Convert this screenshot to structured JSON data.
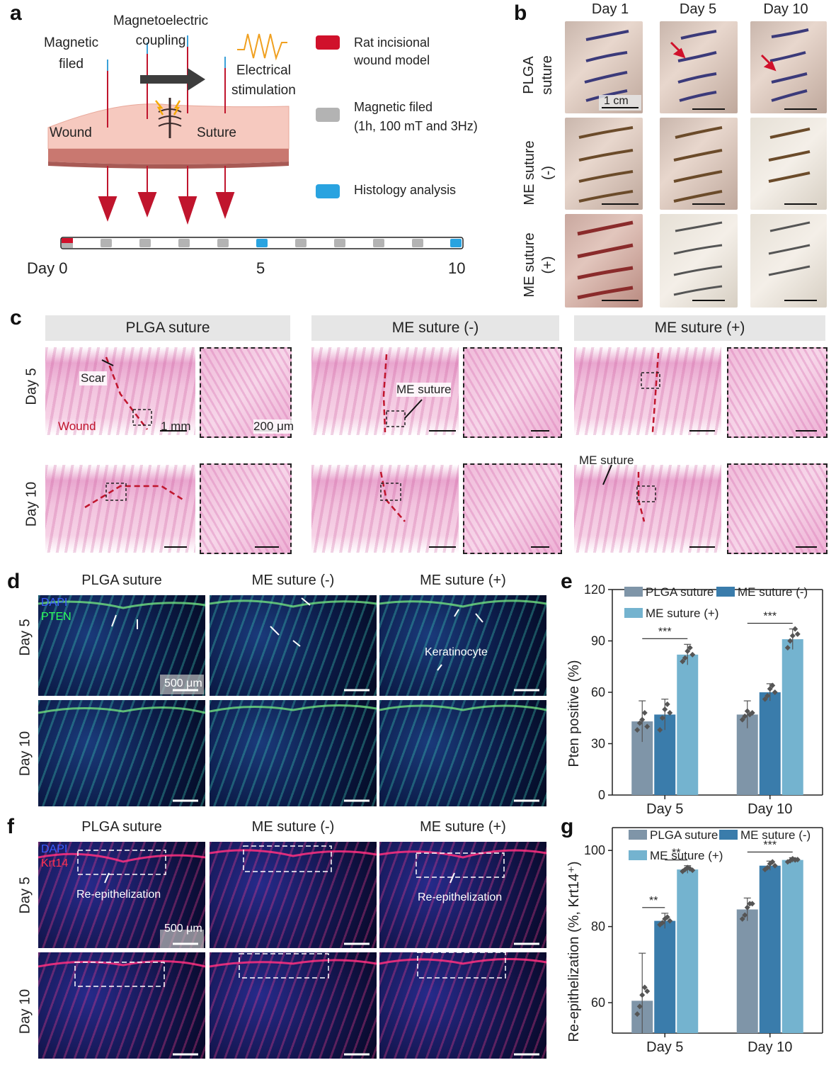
{
  "panels": {
    "a": "a",
    "b": "b",
    "c": "c",
    "d": "d",
    "e": "e",
    "f": "f",
    "g": "g"
  },
  "panel_a": {
    "magnetic_field": "Magnetic\nfiled",
    "magnetoelectric": "Magnetoelectric\ncoupling",
    "electrical_stimulation": "Electrical\nstimulation",
    "wound": "Wound",
    "suture": "Suture",
    "legend": [
      {
        "label": "Rat incisional\nwound model",
        "color": "#d0112b"
      },
      {
        "label": "Magnetic filed\n(1h, 100 mT and 3Hz)",
        "color": "#b3b3b3"
      },
      {
        "label": "Histology analysis",
        "color": "#29a3e0"
      }
    ],
    "timeline": {
      "day_label": "Day 0",
      "t5": "5",
      "t10": "10"
    }
  },
  "panel_b": {
    "columns": [
      "Day 1",
      "Day 5",
      "Day 10"
    ],
    "rows": [
      "PLGA\nsuture",
      "ME suture\n(-)",
      "ME suture\n(+)"
    ],
    "scale": "1 cm"
  },
  "panel_c": {
    "headers": [
      "PLGA suture",
      "ME suture (-)",
      "ME suture (+)"
    ],
    "rows": [
      "Day 5",
      "Day 10"
    ],
    "annotations": {
      "scar": "Scar",
      "wound": "Wound",
      "scale1": "1 mm",
      "scale2": "200 μm",
      "me_suture": "ME suture"
    }
  },
  "panel_d": {
    "headers": [
      "PLGA suture",
      "ME suture (-)",
      "ME suture (+)"
    ],
    "rows": [
      "Day 5",
      "Day 10"
    ],
    "stain1": "DAPI",
    "stain2": "PTEN",
    "scale": "500 μm",
    "keratinocyte": "Keratinocyte"
  },
  "panel_f": {
    "headers": [
      "PLGA suture",
      "ME suture (-)",
      "ME suture (+)"
    ],
    "rows": [
      "Day 5",
      "Day 10"
    ],
    "stain1": "DAPI",
    "stain2": "Krt14",
    "scale": "500 μm",
    "reepi": "Re-epithelization"
  },
  "chart_data": [
    {
      "type": "bar",
      "categories": [
        "Day 5",
        "Day 10"
      ],
      "series": [
        {
          "name": "PLGA suture",
          "values": [
            43,
            47
          ],
          "err": [
            12,
            8
          ],
          "color": "#7f95a8",
          "points": [
            [
              38,
              42,
              44,
              48,
              40
            ],
            [
              44,
              46,
              49,
              47,
              48
            ]
          ]
        },
        {
          "name": "ME suture (-)",
          "values": [
            47,
            60
          ],
          "err": [
            9,
            5
          ],
          "color": "#3a7cab",
          "points": [
            [
              38,
              45,
              50,
              53,
              48
            ],
            [
              56,
              58,
              62,
              64,
              60
            ]
          ]
        },
        {
          "name": "ME suture (+)",
          "values": [
            82,
            91
          ],
          "err": [
            6,
            6
          ],
          "color": "#74b3cf",
          "points": [
            [
              78,
              80,
              84,
              86,
              82
            ],
            [
              86,
              90,
              93,
              97,
              94
            ]
          ]
        }
      ],
      "ylabel": "Pten positive (%)",
      "ylim": [
        0,
        120
      ],
      "yticks": [
        0,
        30,
        60,
        90,
        120
      ],
      "significance": [
        {
          "group": 0,
          "label": "***"
        },
        {
          "group": 1,
          "label": "***"
        }
      ],
      "legend": "top"
    },
    {
      "type": "bar",
      "categories": [
        "Day 5",
        "Day 10"
      ],
      "series": [
        {
          "name": "PLGA suture",
          "values": [
            60.5,
            84.5
          ],
          "err": [
            12.5,
            3
          ],
          "color": "#7f95a8",
          "points": [
            [
              57,
              59,
              62,
              64,
              63
            ],
            [
              82,
              83,
              85,
              86,
              86
            ]
          ]
        },
        {
          "name": "ME suture (-)",
          "values": [
            81.5,
            96
          ],
          "err": [
            2,
            1.2
          ],
          "color": "#3a7cab",
          "points": [
            [
              80.5,
              81,
              82,
              82.5,
              81.5
            ],
            [
              95,
              95.5,
              96.5,
              97,
              96
            ]
          ]
        },
        {
          "name": "ME suture (+)",
          "values": [
            95,
            97.5
          ],
          "err": [
            1,
            0.6
          ],
          "color": "#74b3cf",
          "points": [
            [
              94.5,
              95,
              95.5,
              95.2,
              94.8
            ],
            [
              97,
              97.3,
              97.8,
              97.5,
              97.6
            ]
          ]
        }
      ],
      "ylabel": "Re-epithelization (%, Krt14⁺)",
      "ylim": [
        52,
        106
      ],
      "yticks": [
        60,
        80,
        100
      ],
      "significance": [
        {
          "pair": [
            0,
            1
          ],
          "group": 0,
          "label": "**"
        },
        {
          "pair": [
            1,
            2
          ],
          "group": 0,
          "label": "**"
        },
        {
          "group": 1,
          "label": "***"
        }
      ],
      "legend": "top"
    }
  ]
}
